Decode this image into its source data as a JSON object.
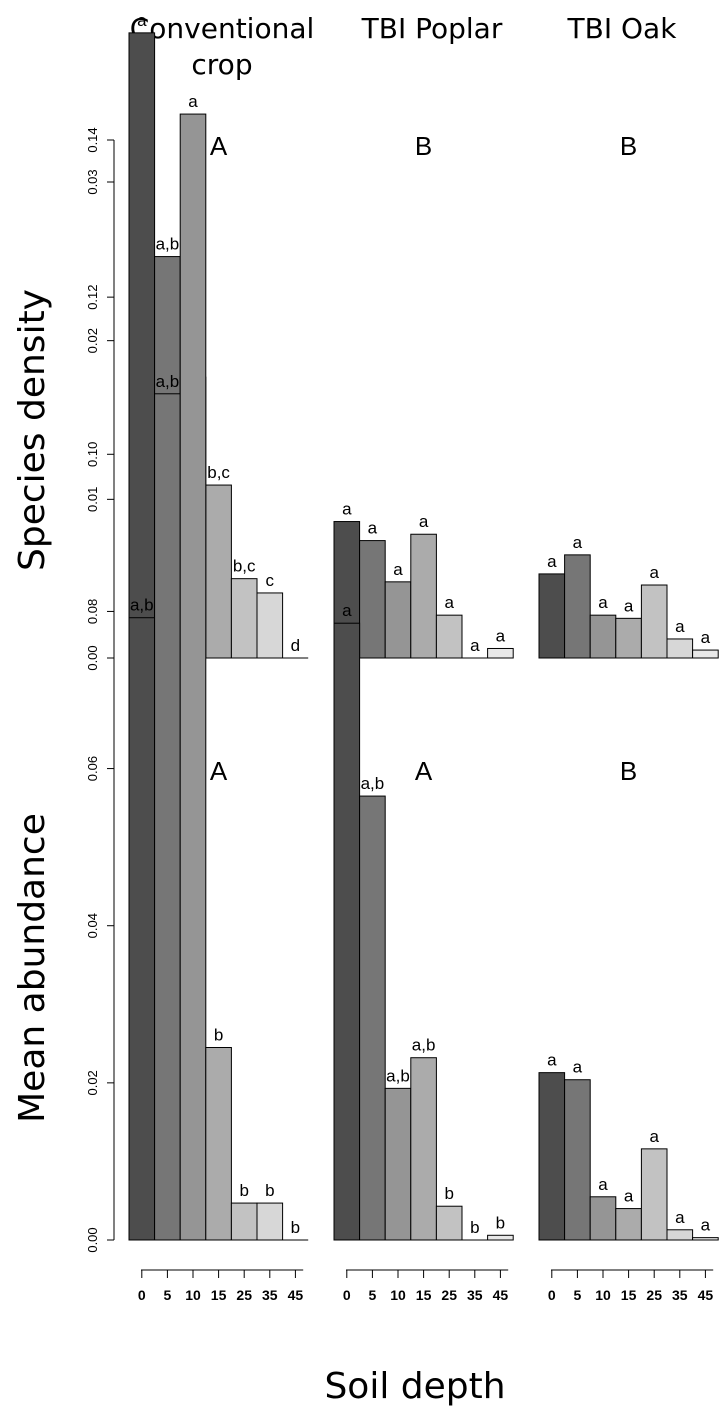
{
  "headers": [
    "Conventional\ncrop",
    "TBI Poplar",
    "TBI Oak"
  ],
  "xlabel": "Soil depth",
  "colors": [
    "#4d4d4d",
    "#767676",
    "#959595",
    "#ababab",
    "#c2c2c2",
    "#d7d7d7",
    "#e8e8e8"
  ],
  "chart_data": [
    {
      "type": "bar",
      "panel": "top",
      "ylabel": "Species density",
      "ylim": [
        0,
        0.0345
      ],
      "yticks": [
        "0.00",
        "0.01",
        "0.02",
        "0.03"
      ],
      "categories": [
        "0",
        "5",
        "10",
        "15",
        "25",
        "35",
        "45"
      ],
      "groups": [
        {
          "name": "Conventional crop",
          "letter": "A",
          "values": [
            0.0394,
            0.0253,
            0.0177,
            0.0109,
            0.005,
            0.0041,
            0.0
          ],
          "labels": [
            "a",
            "a,b",
            "b,c",
            "b,c",
            "b,c",
            "c",
            "d"
          ]
        },
        {
          "name": "TBI Poplar",
          "letter": "B",
          "values": [
            0.0086,
            0.0074,
            0.0048,
            0.0078,
            0.0027,
            0.0,
            0.0006
          ],
          "labels": [
            "a",
            "a",
            "a",
            "a",
            "a",
            "a",
            "a"
          ]
        },
        {
          "name": "TBI Oak",
          "letter": "B",
          "values": [
            0.0053,
            0.0065,
            0.0027,
            0.0025,
            0.0046,
            0.0012,
            0.0005
          ],
          "labels": [
            "a",
            "a",
            "a",
            "a",
            "a",
            "a",
            "a"
          ]
        }
      ]
    },
    {
      "type": "bar",
      "panel": "bottom",
      "ylabel": "Mean abundance",
      "ylim": [
        0,
        0.145
      ],
      "yticks": [
        "0.00",
        "0.02",
        "0.04",
        "0.06",
        "0.08",
        "0.10",
        "0.12",
        "0.14"
      ],
      "categories": [
        "0",
        "5",
        "10",
        "15",
        "25",
        "35",
        "45"
      ],
      "groups": [
        {
          "name": "Conventional crop",
          "letter": "A",
          "values": [
            0.0792,
            0.1077,
            0.1433,
            0.0245,
            0.0047,
            0.0047,
            0.0
          ],
          "labels": [
            "a,b",
            "a,b",
            "a",
            "b",
            "b",
            "b",
            "b"
          ]
        },
        {
          "name": "TBI Poplar",
          "letter": "A",
          "values": [
            0.0785,
            0.0565,
            0.0193,
            0.0232,
            0.0043,
            0.0,
            0.0006
          ],
          "labels": [
            "a",
            "a,b",
            "a,b",
            "a,b",
            "b",
            "b",
            "b"
          ]
        },
        {
          "name": "TBI Oak",
          "letter": "B",
          "values": [
            0.0213,
            0.0204,
            0.0055,
            0.004,
            0.0116,
            0.0013,
            0.0003
          ],
          "labels": [
            "a",
            "a",
            "a",
            "a",
            "a",
            "a",
            "a"
          ]
        }
      ]
    }
  ]
}
